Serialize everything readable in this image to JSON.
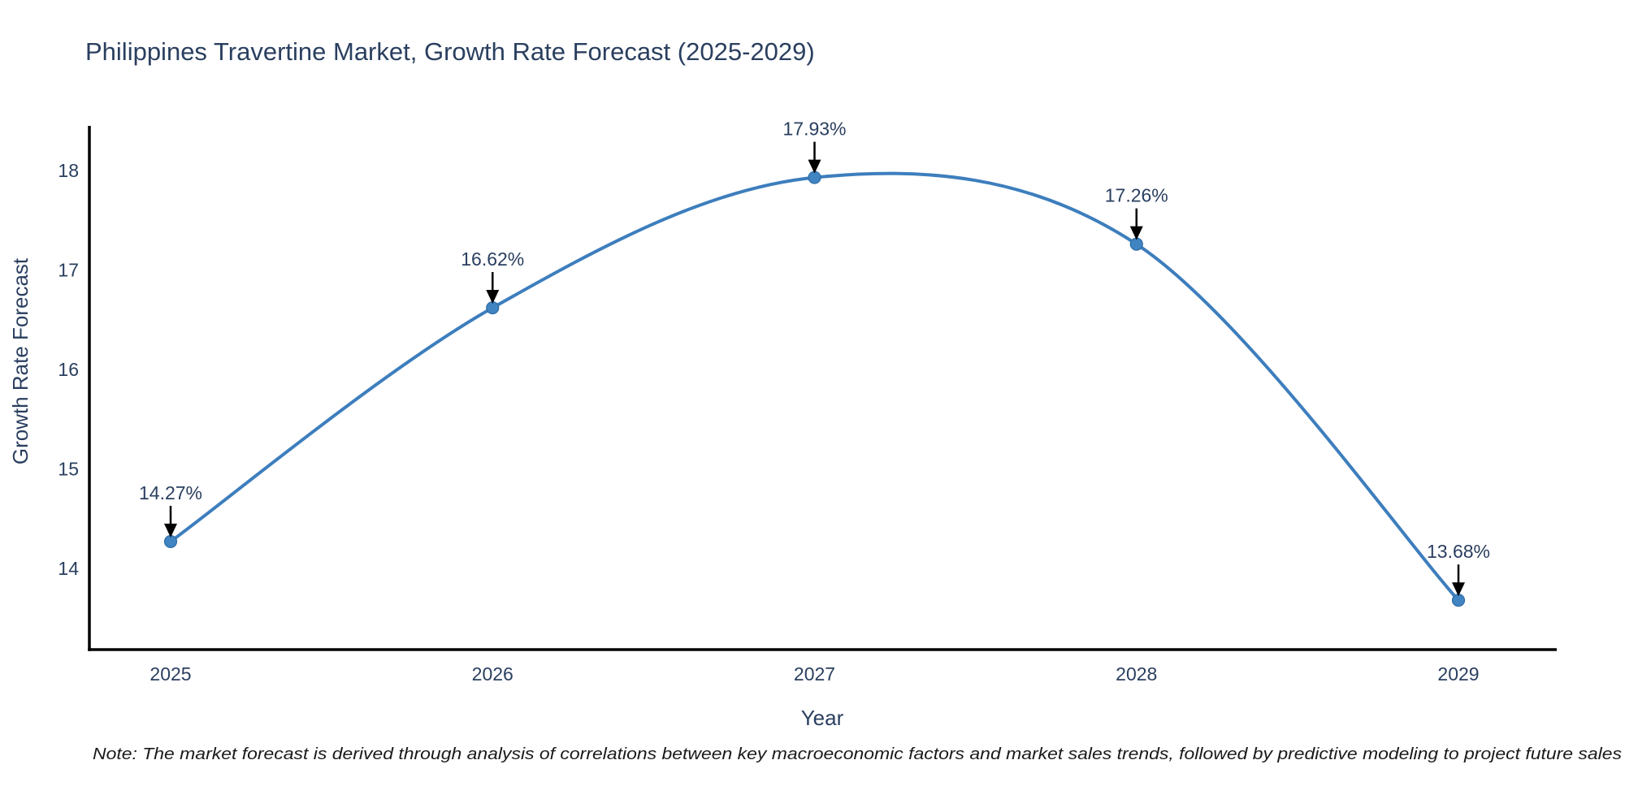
{
  "title": "Philippines Travertine Market, Growth Rate Forecast (2025-2029)",
  "note": "Note: The market forecast is derived through analysis of correlations between key macroeconomic factors and market sales trends, followed by predictive modeling to project future sales",
  "chart_data": {
    "type": "line",
    "title": "Philippines Travertine Market, Growth Rate Forecast (2025-2029)",
    "x": [
      "2025",
      "2026",
      "2027",
      "2028",
      "2029"
    ],
    "series": [
      {
        "name": "Growth Rate Forecast",
        "values": [
          14.27,
          16.62,
          17.93,
          17.26,
          13.68
        ]
      }
    ],
    "annotations": [
      "14.27%",
      "16.62%",
      "17.93%",
      "17.26%",
      "13.68%"
    ],
    "xlabel": "Year",
    "ylabel": "Growth Rate Forecast",
    "yticks": [
      14,
      15,
      16,
      17,
      18
    ],
    "ylim": [
      13.18,
      18.45
    ],
    "line_shape": "spline",
    "grid": false,
    "legend_position": "none",
    "colors": {
      "line": "#3d7ebd",
      "marker": "#4084c1",
      "marker_edge": "#2d6ca6",
      "axis": "#000000",
      "text": "#2a3f5f",
      "note_text": "#1a1a1a",
      "arrow": "#000000",
      "background": "#ffffff"
    }
  }
}
